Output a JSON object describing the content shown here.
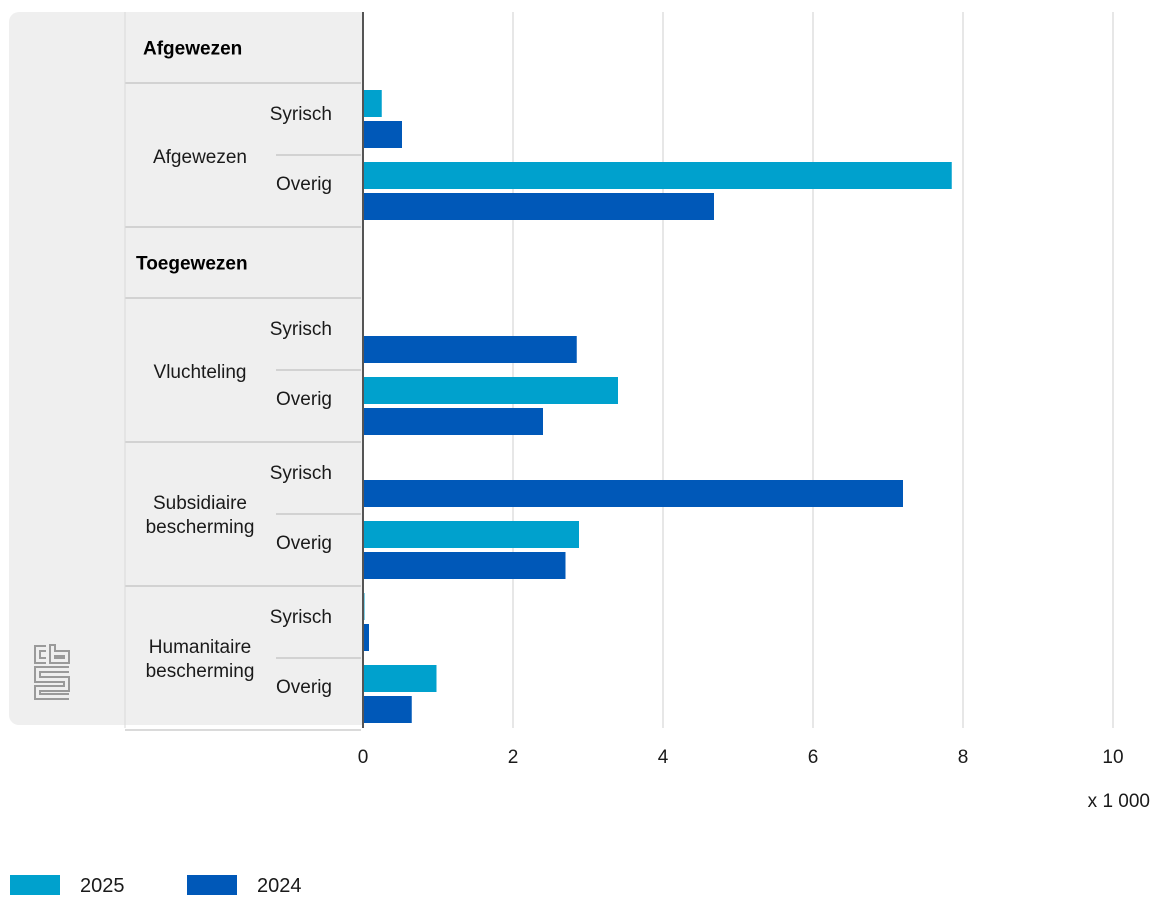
{
  "chart_data": {
    "type": "bar",
    "orientation": "horizontal",
    "x_ticks": [
      "0",
      "2",
      "4",
      "6",
      "8",
      "10"
    ],
    "xlim": [
      0,
      10
    ],
    "x_unit_label": "x 1 000",
    "grid": true,
    "legend_position": "bottom-left",
    "colors": {
      "2025": "#00A1CD",
      "2024": "#0058B8",
      "panel": "#EFEFEF",
      "grid": "#CFCFCF",
      "axis": "#555555",
      "logo": "#9A9A9A"
    },
    "series": [
      {
        "name": "2025",
        "color": "#00A1CD"
      },
      {
        "name": "2024",
        "color": "#0058B8"
      }
    ],
    "sections": [
      {
        "title": "Afgewezen",
        "groups": [
          {
            "label": [
              "Afgewezen"
            ],
            "rows": [
              {
                "label": "Syrisch",
                "values": [
                  0.25,
                  0.52
                ]
              },
              {
                "label": "Overig",
                "values": [
                  7.85,
                  4.68
                ]
              }
            ]
          }
        ]
      },
      {
        "title": "Toegewezen",
        "groups": [
          {
            "label": [
              "Vluchteling"
            ],
            "rows": [
              {
                "label": "Syrisch",
                "values": [
                  0.0,
                  2.85
                ]
              },
              {
                "label": "Overig",
                "values": [
                  3.4,
                  2.4
                ]
              }
            ]
          },
          {
            "label": [
              "Subsidiaire",
              "bescherming"
            ],
            "rows": [
              {
                "label": "Syrisch",
                "values": [
                  0.0,
                  7.2
                ]
              },
              {
                "label": "Overig",
                "values": [
                  2.88,
                  2.7
                ]
              }
            ]
          },
          {
            "label": [
              "Humanitaire",
              "bescherming"
            ],
            "rows": [
              {
                "label": "Syrisch",
                "values": [
                  0.02,
                  0.08
                ]
              },
              {
                "label": "Overig",
                "values": [
                  0.98,
                  0.65
                ]
              }
            ]
          }
        ]
      }
    ]
  },
  "logo": {
    "name": "cbs-logo-icon",
    "text": "cbs"
  }
}
